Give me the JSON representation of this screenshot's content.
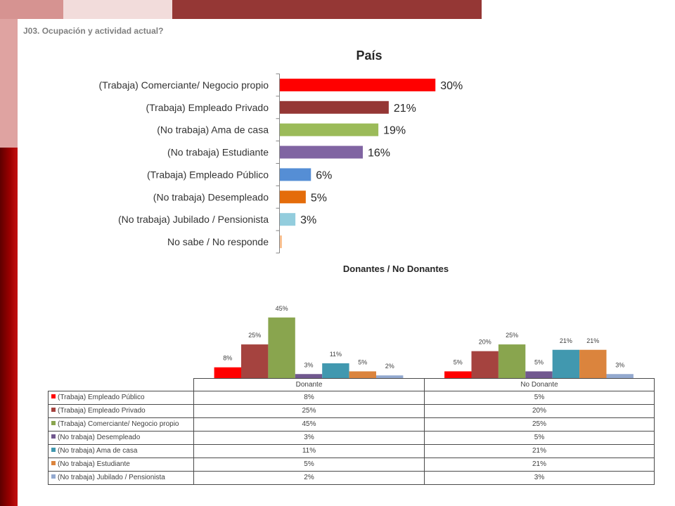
{
  "slide": {
    "question": "J03. Ocupación y actividad actual?"
  },
  "chart_data": [
    {
      "type": "bar",
      "orientation": "horizontal",
      "title": "País",
      "categories": [
        "(Trabaja) Comerciante/ Negocio propio",
        "(Trabaja) Empleado Privado",
        "(No trabaja) Ama de casa",
        "(No trabaja) Estudiante",
        "(Trabaja) Empleado Público",
        "(No trabaja) Desempleado",
        "(No trabaja) Jubilado / Pensionista",
        "No sabe / No responde"
      ],
      "values": [
        30,
        21,
        19,
        16,
        6,
        5,
        3,
        0.4
      ],
      "value_labels": [
        "30%",
        "21%",
        "19%",
        "16%",
        "6%",
        "5%",
        "3%",
        ""
      ],
      "colors": [
        "#FF0000",
        "#953735",
        "#9BBB59",
        "#8064A2",
        "#558ED5",
        "#E46C0A",
        "#93CDDD",
        "#FAC090"
      ],
      "xlim": [
        0,
        40
      ],
      "grid": false
    },
    {
      "type": "bar",
      "orientation": "vertical",
      "title": "Donantes / No Donantes",
      "categories": [
        "Donante",
        "No Donante"
      ],
      "series": [
        {
          "name": "(Trabaja) Empleado Público",
          "values": [
            8,
            5
          ],
          "labels": [
            "8%",
            "5%"
          ],
          "color": "#FF0000"
        },
        {
          "name": "(Trabaja) Empleado Privado",
          "values": [
            25,
            20
          ],
          "labels": [
            "25%",
            "20%"
          ],
          "color": "#A5433F"
        },
        {
          "name": "(Trabaja) Comerciante/ Negocio propio",
          "values": [
            45,
            25
          ],
          "labels": [
            "45%",
            "25%"
          ],
          "color": "#89A54E"
        },
        {
          "name": "(No trabaja) Desempleado",
          "values": [
            3,
            5
          ],
          "labels": [
            "3%",
            "5%"
          ],
          "color": "#71588F"
        },
        {
          "name": "(No trabaja) Ama de casa",
          "values": [
            11,
            21
          ],
          "labels": [
            "11%",
            "21%"
          ],
          "color": "#4198AF"
        },
        {
          "name": "(No trabaja) Estudiante",
          "values": [
            5,
            21
          ],
          "labels": [
            "5%",
            "21%"
          ],
          "color": "#DB843D"
        },
        {
          "name": "(No trabaja) Jubilado / Pensionista",
          "values": [
            2,
            3
          ],
          "labels": [
            "2%",
            "3%"
          ],
          "color": "#93A9CF"
        }
      ],
      "ylim": [
        0,
        60
      ],
      "grid": false,
      "legend": "bottom",
      "data_table": true
    }
  ]
}
